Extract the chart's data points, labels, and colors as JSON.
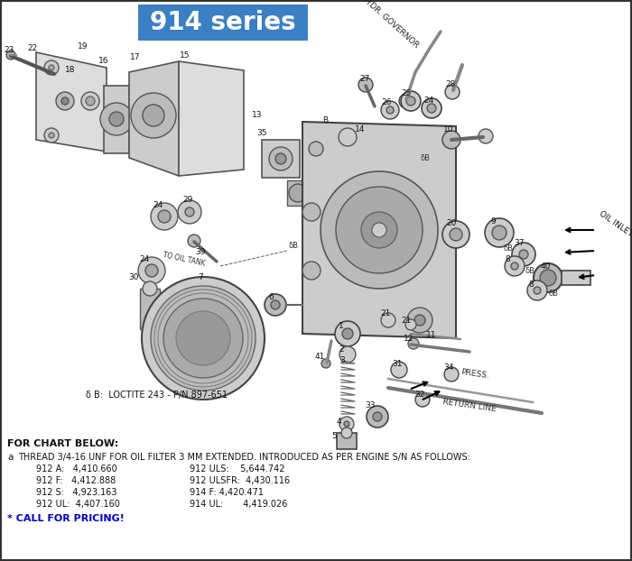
{
  "title": "914 series",
  "title_bg_color": "#3B7FC4",
  "title_text_color": "#FFFFFF",
  "title_fontsize": 20,
  "bg_color": "#FFFFFF",
  "border_color": "#333333",
  "fig_width": 7.0,
  "fig_height": 6.22,
  "dpi": 100,
  "note_header": "FOR CHART BELOW:",
  "note_a_label": "a",
  "note_a_text": "THREAD 3/4-16 UNF FOR OIL FILTER 3 MM EXTENDED. INTRODUCED AS PER ENGINE S/N AS FOLLOWS:",
  "note_lines": [
    [
      "912 A:   4,410.660",
      "912 ULS:    5,644.742"
    ],
    [
      "912 F:   4,412.888",
      "912 ULSFR:  4,430.116"
    ],
    [
      "912 S:   4,923.163",
      "914 F: 4,420.471"
    ],
    [
      "912 UL:  4,407.160",
      "914 UL:       4,419.026"
    ]
  ],
  "call_pricing": "* CALL FOR PRICING!",
  "call_pricing_color": "#0000CC",
  "loctite_note": "δ B:  LOCTITE 243 - P/N 897-651",
  "oil_inlet_label": "OIL INLET",
  "to_hydr_governor": "TO HYDR. GOVERNOR",
  "to_oil_tank": "TO OIL TANK",
  "press_label": "PRESS.",
  "return_line_label": "RETURN LINE"
}
